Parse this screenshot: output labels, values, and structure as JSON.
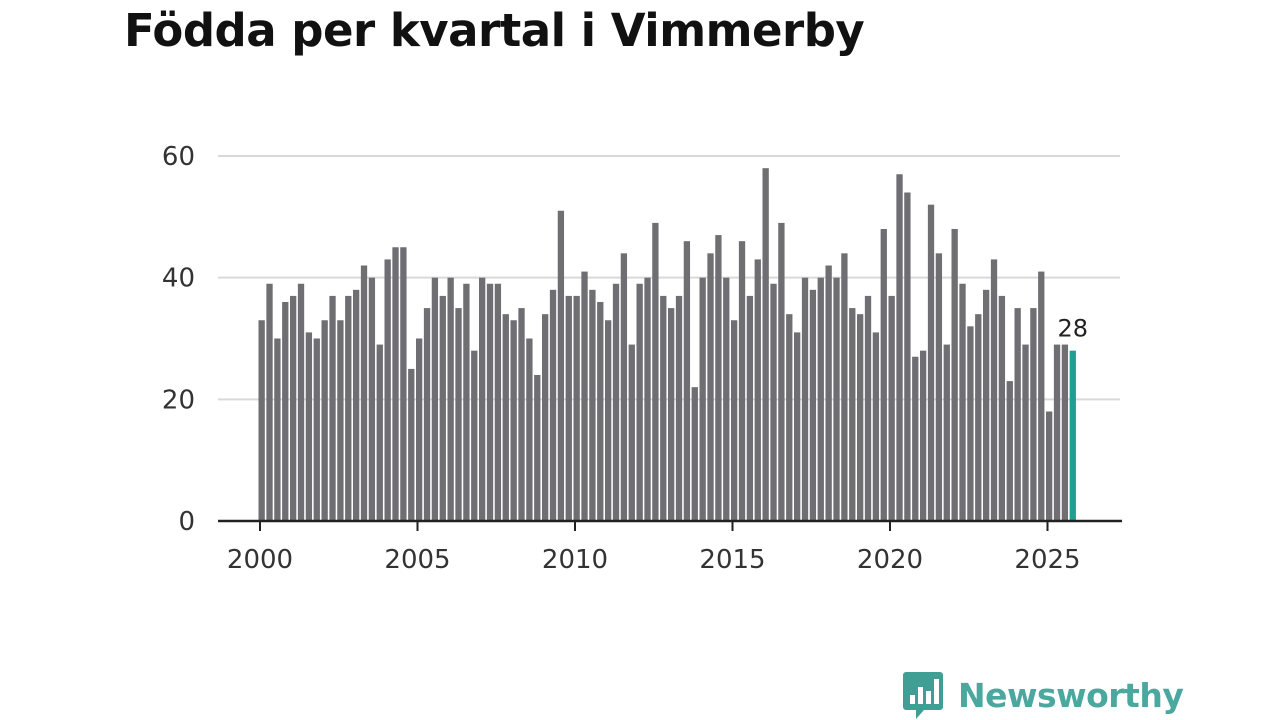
{
  "title": "Födda per kvartal i Vimmerby",
  "brand": {
    "name": "Newsworthy",
    "color": "#3f9f95",
    "icon": "bar-chart-speech-bubble-icon"
  },
  "chart_data": {
    "type": "bar",
    "title": "Födda per kvartal i Vimmerby",
    "xlabel": "",
    "ylabel": "",
    "ylim": [
      0,
      60
    ],
    "yticks": [
      0,
      20,
      40,
      60
    ],
    "xticks": [
      "2000",
      "2005",
      "2010",
      "2015",
      "2020",
      "2025"
    ],
    "grid": true,
    "bar_color": "#6e6e73",
    "highlight_color": "#1f9e96",
    "highlight_label": "28",
    "categories": [
      "2000 Q1",
      "2000 Q2",
      "2000 Q3",
      "2000 Q4",
      "2001 Q1",
      "2001 Q2",
      "2001 Q3",
      "2001 Q4",
      "2002 Q1",
      "2002 Q2",
      "2002 Q3",
      "2002 Q4",
      "2003 Q1",
      "2003 Q2",
      "2003 Q3",
      "2003 Q4",
      "2004 Q1",
      "2004 Q2",
      "2004 Q3",
      "2004 Q4",
      "2005 Q1",
      "2005 Q2",
      "2005 Q3",
      "2005 Q4",
      "2006 Q1",
      "2006 Q2",
      "2006 Q3",
      "2006 Q4",
      "2007 Q1",
      "2007 Q2",
      "2007 Q3",
      "2007 Q4",
      "2008 Q1",
      "2008 Q2",
      "2008 Q3",
      "2008 Q4",
      "2009 Q1",
      "2009 Q2",
      "2009 Q3",
      "2009 Q4",
      "2010 Q1",
      "2010 Q2",
      "2010 Q3",
      "2010 Q4",
      "2011 Q1",
      "2011 Q2",
      "2011 Q3",
      "2011 Q4",
      "2012 Q1",
      "2012 Q2",
      "2012 Q3",
      "2012 Q4",
      "2013 Q1",
      "2013 Q2",
      "2013 Q3",
      "2013 Q4",
      "2014 Q1",
      "2014 Q2",
      "2014 Q3",
      "2014 Q4",
      "2015 Q1",
      "2015 Q2",
      "2015 Q3",
      "2015 Q4",
      "2016 Q1",
      "2016 Q2",
      "2016 Q3",
      "2016 Q4",
      "2017 Q1",
      "2017 Q2",
      "2017 Q3",
      "2017 Q4",
      "2018 Q1",
      "2018 Q2",
      "2018 Q3",
      "2018 Q4",
      "2019 Q1",
      "2019 Q2",
      "2019 Q3",
      "2019 Q4",
      "2020 Q1",
      "2020 Q2",
      "2020 Q3",
      "2020 Q4",
      "2021 Q1",
      "2021 Q2",
      "2021 Q3",
      "2021 Q4",
      "2022 Q1",
      "2022 Q2",
      "2022 Q3",
      "2022 Q4",
      "2023 Q1",
      "2023 Q2",
      "2023 Q3",
      "2023 Q4",
      "2024 Q1",
      "2024 Q2",
      "2024 Q3",
      "2024 Q4",
      "2025 Q1",
      "2025 Q2",
      "2025 Q3",
      "2025 Q4"
    ],
    "values": [
      33,
      39,
      30,
      36,
      37,
      39,
      31,
      30,
      33,
      37,
      33,
      37,
      38,
      42,
      40,
      29,
      43,
      45,
      45,
      25,
      30,
      35,
      40,
      37,
      40,
      35,
      39,
      28,
      40,
      39,
      39,
      34,
      33,
      35,
      30,
      24,
      34,
      38,
      51,
      37,
      37,
      41,
      38,
      36,
      33,
      39,
      44,
      29,
      39,
      40,
      49,
      37,
      35,
      37,
      46,
      22,
      40,
      44,
      47,
      40,
      33,
      46,
      37,
      43,
      58,
      39,
      49,
      34,
      31,
      40,
      38,
      40,
      42,
      40,
      44,
      35,
      34,
      37,
      31,
      48,
      37,
      57,
      54,
      27,
      28,
      52,
      44,
      29,
      48,
      39,
      32,
      34,
      38,
      43,
      37,
      23,
      35,
      29,
      35,
      41,
      18,
      29,
      29,
      28
    ]
  }
}
